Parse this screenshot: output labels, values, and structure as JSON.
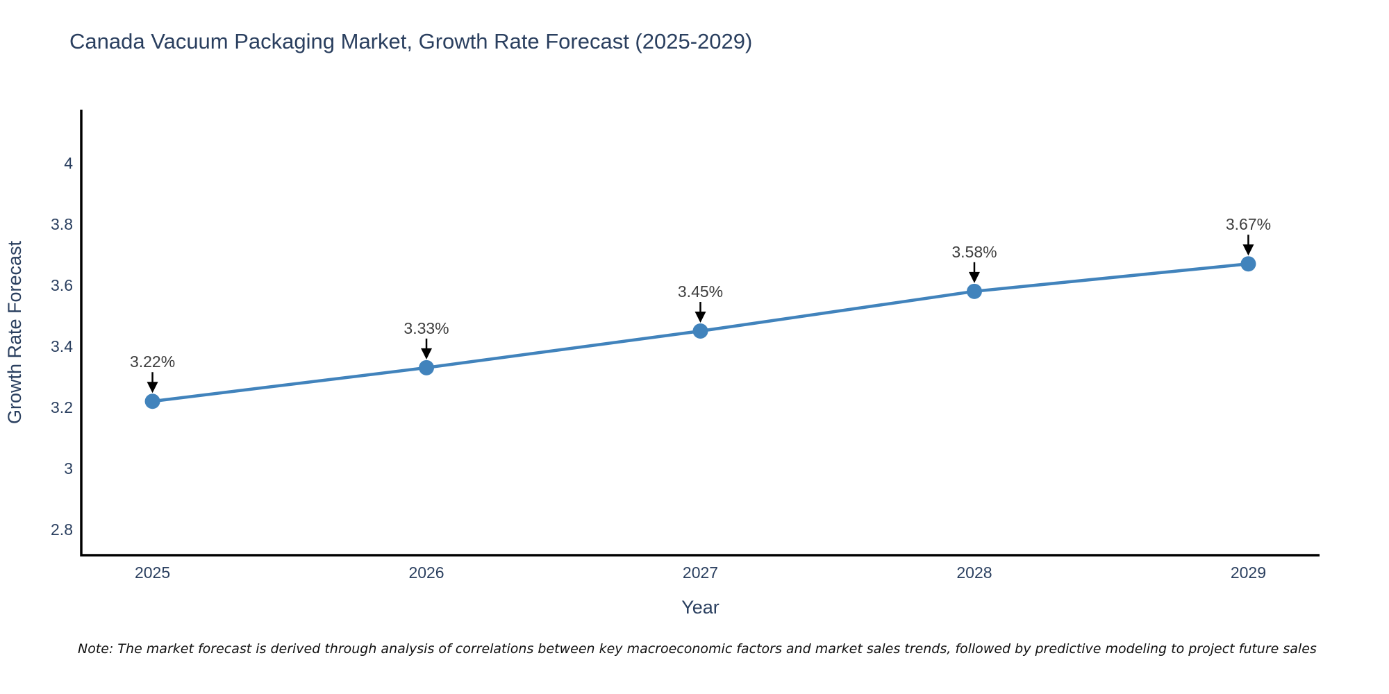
{
  "page": {
    "background_color": "#ffffff"
  },
  "chart_data": {
    "type": "line",
    "title": "Canada Vacuum Packaging Market, Growth Rate Forecast (2025-2029)",
    "xlabel": "Year",
    "ylabel": "Growth Rate Forecast",
    "x": [
      2025,
      2026,
      2027,
      2028,
      2029
    ],
    "series": [
      {
        "name": "Growth Rate Forecast",
        "values": [
          3.22,
          3.33,
          3.45,
          3.58,
          3.67
        ]
      }
    ],
    "point_labels": [
      "3.22%",
      "3.33%",
      "3.45%",
      "3.58%",
      "3.67%"
    ],
    "x_tick_labels": [
      "2025",
      "2026",
      "2027",
      "2028",
      "2029"
    ],
    "y_tick_values": [
      2.8,
      3.0,
      3.2,
      3.4,
      3.6,
      3.8,
      4.0
    ],
    "y_tick_labels": [
      "2.8",
      "3",
      "3.2",
      "3.4",
      "3.6",
      "3.8",
      "4"
    ],
    "xlim": [
      2024.74,
      2029.26
    ],
    "ylim": [
      2.716,
      4.175
    ],
    "grid": false,
    "legend": "none",
    "annotation_style": "label-with-down-arrow",
    "colors": {
      "line": "#4183bc",
      "marker": "#4183bc",
      "axis": "#000000",
      "title_text": "#2a3f5f",
      "tick_text": "#2a3f5f",
      "annotation_text": "#3d3d3d",
      "annotation_arrow": "#000000",
      "note_text": "#111111"
    },
    "note": "Note: The market forecast is derived through analysis of correlations between key macroeconomic factors and market sales trends, followed by predictive modeling to project future sales"
  }
}
